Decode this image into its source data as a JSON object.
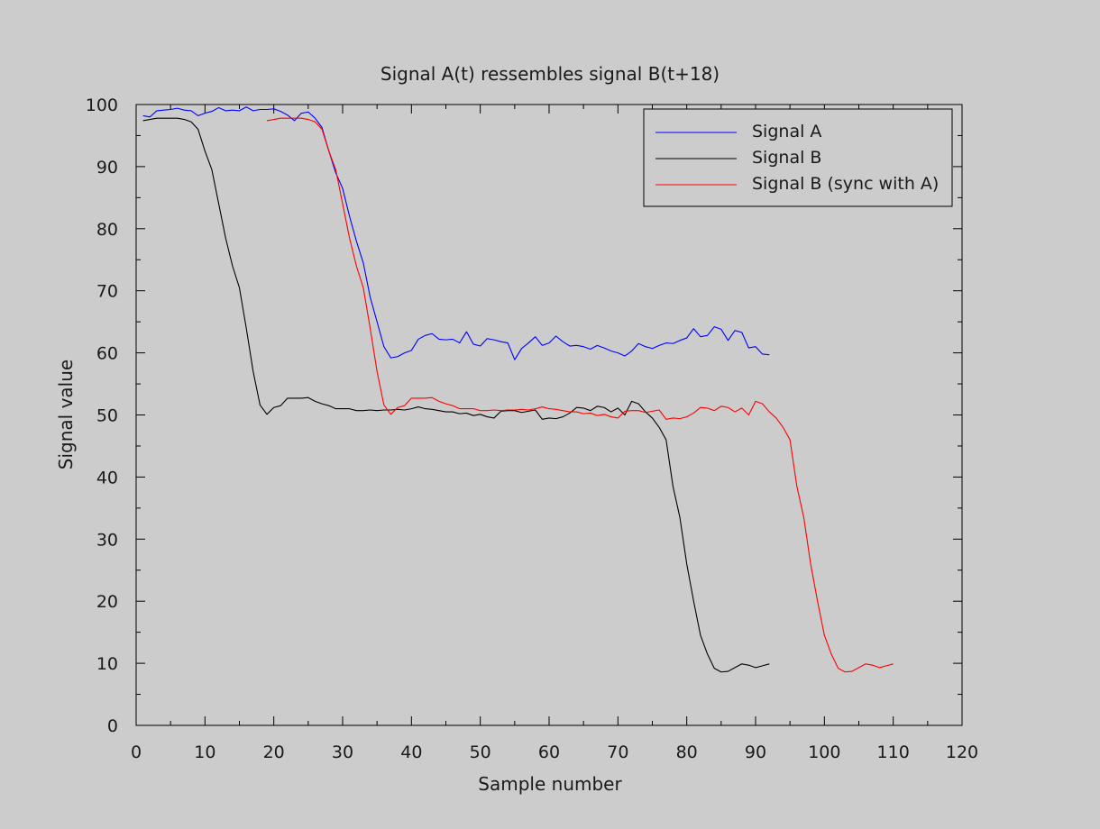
{
  "chart_data": {
    "type": "line",
    "title": "Signal A(t) ressembles signal B(t+18)",
    "xlabel": "Sample number",
    "ylabel": "Signal value",
    "xlim": [
      0,
      120
    ],
    "ylim": [
      0,
      100
    ],
    "xticks": [
      0,
      10,
      20,
      30,
      40,
      50,
      60,
      70,
      80,
      90,
      100,
      110,
      120
    ],
    "yticks": [
      0,
      10,
      20,
      30,
      40,
      50,
      60,
      70,
      80,
      90,
      100
    ],
    "grid": false,
    "legend_position": "top-right",
    "series": [
      {
        "name": "Signal A",
        "color": "#0000ff",
        "x": [
          1,
          2,
          3,
          4,
          5,
          6,
          7,
          8,
          9,
          10,
          11,
          12,
          13,
          14,
          15,
          16,
          17,
          18,
          19,
          20,
          21,
          22,
          23,
          24,
          25,
          26,
          27,
          28,
          29,
          30,
          31,
          32,
          33,
          34,
          35,
          36,
          37,
          38,
          39,
          40,
          41,
          42,
          43,
          44,
          45,
          46,
          47,
          48,
          49,
          50,
          51,
          52,
          53,
          54,
          55,
          56,
          57,
          58,
          59,
          60,
          61,
          62,
          63,
          64,
          65,
          66,
          67,
          68,
          69,
          70,
          71,
          72,
          73,
          74,
          75,
          76,
          77,
          78,
          79,
          80,
          81,
          82,
          83,
          84,
          85,
          86,
          87,
          88,
          89,
          90,
          91,
          92
        ],
        "y": [
          98.2,
          98.0,
          99.0,
          99.1,
          99.2,
          99.4,
          99.1,
          99.0,
          98.2,
          98.6,
          98.9,
          99.5,
          99.0,
          99.1,
          99.0,
          99.6,
          99.0,
          99.2,
          99.2,
          99.3,
          98.9,
          98.3,
          97.4,
          98.6,
          98.8,
          97.8,
          96.3,
          92.5,
          89.0,
          86.5,
          82.0,
          78.0,
          74.5,
          69.0,
          65.0,
          61.0,
          59.2,
          59.4,
          60.0,
          60.4,
          62.2,
          62.8,
          63.1,
          62.2,
          62.1,
          62.2,
          61.6,
          63.4,
          61.4,
          61.1,
          62.3,
          62.1,
          61.8,
          61.6,
          58.9,
          60.7,
          61.6,
          62.6,
          61.2,
          61.6,
          62.7,
          61.8,
          61.1,
          61.2,
          61.0,
          60.6,
          61.2,
          60.8,
          60.3,
          60.0,
          59.5,
          60.3,
          61.5,
          61.0,
          60.7,
          61.2,
          61.6,
          61.5,
          62.0,
          62.4,
          63.9,
          62.6,
          62.8,
          64.2,
          63.8,
          62.0,
          63.6,
          63.3,
          60.8,
          61.0,
          59.8,
          59.7
        ]
      },
      {
        "name": "Signal B",
        "color": "#000000",
        "x": [
          1,
          2,
          3,
          4,
          5,
          6,
          7,
          8,
          9,
          10,
          11,
          12,
          13,
          14,
          15,
          16,
          17,
          18,
          19,
          20,
          21,
          22,
          23,
          24,
          25,
          26,
          27,
          28,
          29,
          30,
          31,
          32,
          33,
          34,
          35,
          36,
          37,
          38,
          39,
          40,
          41,
          42,
          43,
          44,
          45,
          46,
          47,
          48,
          49,
          50,
          51,
          52,
          53,
          54,
          55,
          56,
          57,
          58,
          59,
          60,
          61,
          62,
          63,
          64,
          65,
          66,
          67,
          68,
          69,
          70,
          71,
          72,
          73,
          74,
          75,
          76,
          77,
          78,
          79,
          80,
          81,
          82,
          83,
          84,
          85,
          86,
          87,
          88,
          89,
          90,
          91,
          92
        ],
        "y": [
          97.4,
          97.6,
          97.8,
          97.8,
          97.8,
          97.8,
          97.6,
          97.2,
          96.0,
          92.5,
          89.5,
          84.0,
          78.5,
          74.0,
          70.5,
          64.0,
          57.0,
          51.6,
          50.1,
          51.2,
          51.5,
          52.7,
          52.7,
          52.7,
          52.8,
          52.2,
          51.8,
          51.5,
          51.0,
          51.0,
          51.0,
          50.7,
          50.7,
          50.8,
          50.7,
          50.8,
          50.8,
          50.9,
          50.8,
          51.0,
          51.3,
          51.0,
          50.9,
          50.7,
          50.5,
          50.5,
          50.2,
          50.3,
          49.9,
          50.1,
          49.7,
          49.5,
          50.6,
          50.7,
          50.7,
          50.4,
          50.6,
          50.8,
          49.3,
          49.5,
          49.4,
          49.7,
          50.3,
          51.2,
          51.1,
          50.7,
          51.4,
          51.2,
          50.5,
          51.1,
          50.0,
          52.2,
          51.8,
          50.5,
          49.5,
          48.0,
          46.0,
          38.5,
          33.5,
          26.0,
          20.0,
          14.5,
          11.5,
          9.2,
          8.6,
          8.7,
          9.3,
          9.9,
          9.7,
          9.3,
          9.6,
          9.9
        ]
      },
      {
        "name": "Signal B (sync with A)",
        "color": "#ff0000",
        "x": [
          19,
          20,
          21,
          22,
          23,
          24,
          25,
          26,
          27,
          28,
          29,
          30,
          31,
          32,
          33,
          34,
          35,
          36,
          37,
          38,
          39,
          40,
          41,
          42,
          43,
          44,
          45,
          46,
          47,
          48,
          49,
          50,
          51,
          52,
          53,
          54,
          55,
          56,
          57,
          58,
          59,
          60,
          61,
          62,
          63,
          64,
          65,
          66,
          67,
          68,
          69,
          70,
          71,
          72,
          73,
          74,
          75,
          76,
          77,
          78,
          79,
          80,
          81,
          82,
          83,
          84,
          85,
          86,
          87,
          88,
          89,
          90,
          91,
          92,
          93,
          94,
          95,
          96,
          97,
          98,
          99,
          100,
          101,
          102,
          103,
          104,
          105,
          106,
          107,
          108,
          109,
          110
        ],
        "y": [
          97.4,
          97.6,
          97.8,
          97.8,
          97.8,
          97.8,
          97.6,
          97.2,
          96.0,
          92.5,
          89.5,
          84.0,
          78.5,
          74.0,
          70.5,
          64.0,
          57.0,
          51.6,
          50.1,
          51.2,
          51.5,
          52.7,
          52.7,
          52.7,
          52.8,
          52.2,
          51.8,
          51.5,
          51.0,
          51.0,
          51.0,
          50.7,
          50.7,
          50.8,
          50.7,
          50.8,
          50.8,
          50.9,
          50.8,
          51.0,
          51.3,
          51.0,
          50.9,
          50.7,
          50.5,
          50.5,
          50.2,
          50.3,
          49.9,
          50.1,
          49.7,
          49.5,
          50.6,
          50.7,
          50.7,
          50.4,
          50.6,
          50.8,
          49.3,
          49.5,
          49.4,
          49.7,
          50.3,
          51.2,
          51.1,
          50.7,
          51.4,
          51.2,
          50.5,
          51.1,
          50.0,
          52.2,
          51.8,
          50.5,
          49.5,
          48.0,
          46.0,
          38.5,
          33.5,
          26.0,
          20.0,
          14.5,
          11.5,
          9.2,
          8.6,
          8.7,
          9.3,
          9.9,
          9.7,
          9.3,
          9.6,
          9.9
        ]
      }
    ]
  }
}
